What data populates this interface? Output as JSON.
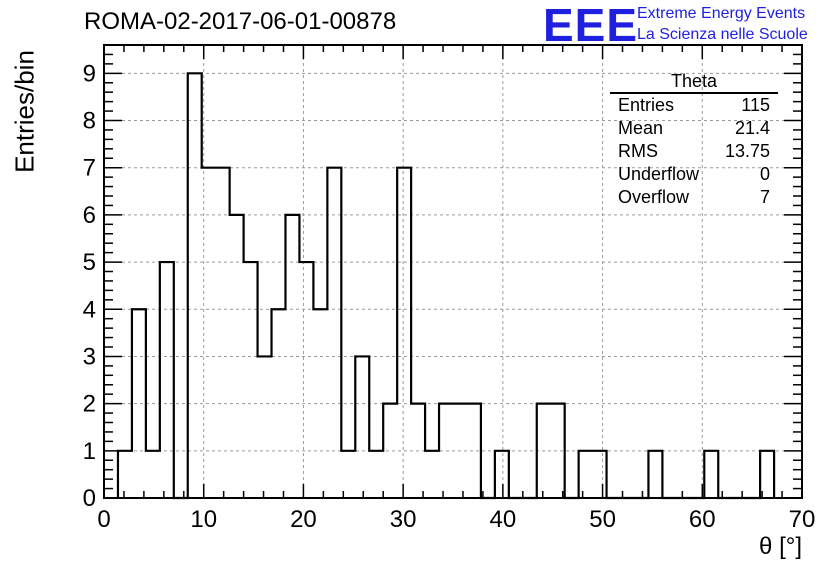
{
  "title": "ROMA-02-2017-06-01-00878",
  "logo": {
    "mark": "EEE",
    "line1": "Extreme Energy Events",
    "line2": "La Scienza nelle Scuole",
    "color": "#1f1fe0"
  },
  "stats": {
    "name": "Theta",
    "rows": [
      {
        "label": "Entries",
        "value": "115"
      },
      {
        "label": "Mean",
        "value": "21.4"
      },
      {
        "label": "RMS",
        "value": "13.75"
      },
      {
        "label": "Underflow",
        "value": "0"
      },
      {
        "label": "Overflow",
        "value": "7"
      }
    ]
  },
  "chart_data": {
    "type": "histogram",
    "title": "ROMA-02-2017-06-01-00878",
    "xlabel": "θ [°]",
    "ylabel": "Entries/bin",
    "xlim": [
      0,
      70
    ],
    "ylim": [
      0,
      9.6
    ],
    "bin_width": 1.4,
    "bin_start": 1.4,
    "values": [
      1,
      4,
      1,
      5,
      0,
      9,
      7,
      7,
      6,
      5,
      3,
      4,
      6,
      5,
      4,
      7,
      1,
      3,
      1,
      2,
      7,
      2,
      1,
      2,
      2,
      2,
      0,
      1,
      0,
      0,
      2,
      2,
      0,
      1,
      1,
      0,
      0,
      0,
      1,
      0,
      0,
      0,
      1,
      0,
      0,
      0,
      1
    ],
    "xticks": [
      0,
      10,
      20,
      30,
      40,
      50,
      60,
      70
    ],
    "yticks": [
      0,
      1,
      2,
      3,
      4,
      5,
      6,
      7,
      8,
      9
    ],
    "grid": true,
    "line_color": "#000000"
  }
}
